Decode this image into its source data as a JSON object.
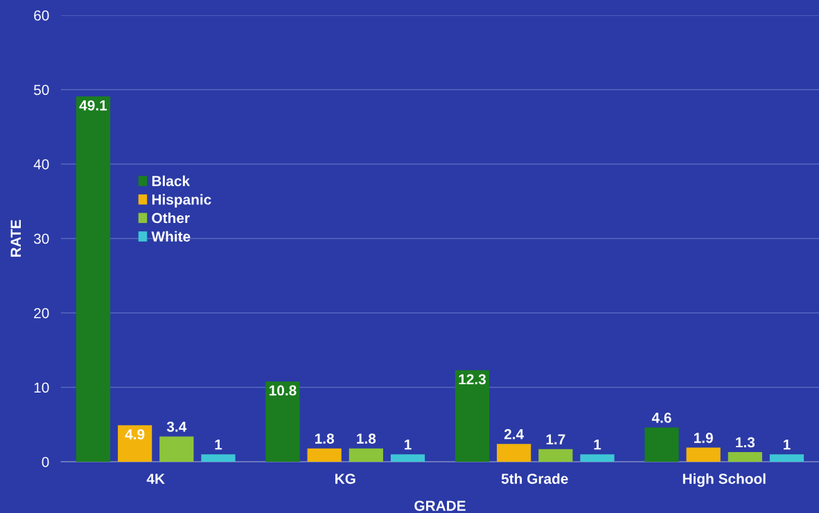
{
  "chart_data": {
    "type": "bar",
    "xlabel": "GRADE",
    "ylabel": "RATE",
    "categories": [
      "4K",
      "KG",
      "5th Grade",
      "High School"
    ],
    "series": [
      {
        "name": "Black",
        "color": "#1b7d1f",
        "values": [
          49.1,
          10.8,
          12.3,
          4.6
        ]
      },
      {
        "name": "Hispanic",
        "color": "#f2b40c",
        "values": [
          4.9,
          1.8,
          2.4,
          1.9
        ]
      },
      {
        "name": "Other",
        "color": "#8cc43c",
        "values": [
          3.4,
          1.8,
          1.7,
          1.3
        ]
      },
      {
        "name": "White",
        "color": "#3ec6d6",
        "values": [
          1,
          1,
          1,
          1
        ]
      }
    ],
    "ylim": [
      0,
      60
    ],
    "yticks": [
      0,
      10,
      20,
      30,
      40,
      50,
      60
    ],
    "grid": "y",
    "legend": "top left",
    "data_labels": true
  }
}
